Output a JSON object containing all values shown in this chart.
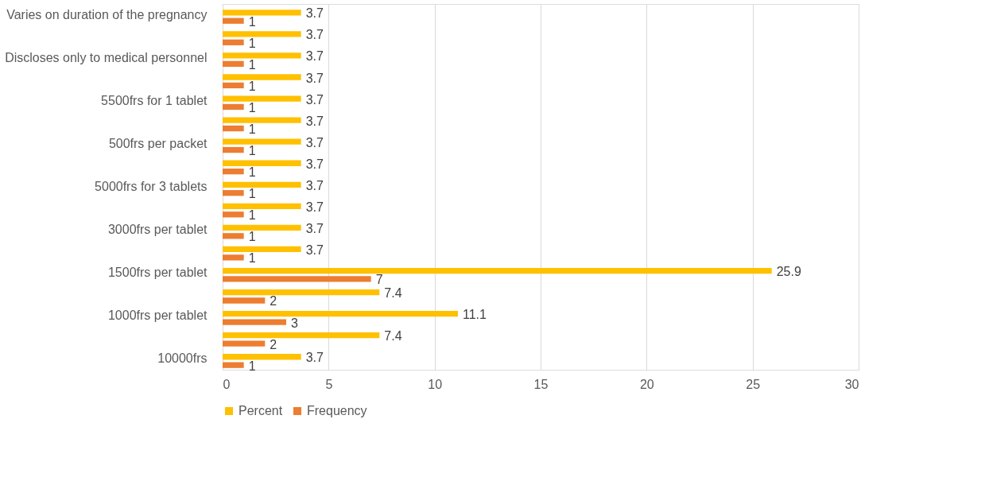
{
  "chart_data": {
    "type": "bar",
    "orientation": "horizontal",
    "categories": [
      "Varies on duration of the pregnancy",
      null,
      "Discloses only to medical personnel",
      null,
      "5500frs for 1 tablet",
      null,
      "500frs per packet",
      null,
      "5000frs for 3 tablets",
      null,
      "3000frs per tablet",
      null,
      "1500frs per tablet",
      null,
      "1000frs per tablet",
      null,
      "10000frs"
    ],
    "series": [
      {
        "name": "Percent",
        "color": "#ffc000",
        "values": [
          3.7,
          3.7,
          3.7,
          3.7,
          3.7,
          3.7,
          3.7,
          3.7,
          3.7,
          3.7,
          3.7,
          3.7,
          25.9,
          7.4,
          11.1,
          7.4,
          3.7
        ]
      },
      {
        "name": "Frequency",
        "color": "#ed7d31",
        "values": [
          1,
          1,
          1,
          1,
          1,
          1,
          1,
          1,
          1,
          1,
          1,
          1,
          7,
          2,
          3,
          2,
          1
        ]
      }
    ],
    "xlim": [
      0,
      30
    ],
    "xticks": [
      0,
      5,
      10,
      15,
      20,
      25,
      30
    ],
    "grid": "x",
    "legend": "bottom",
    "data_labels": true
  }
}
